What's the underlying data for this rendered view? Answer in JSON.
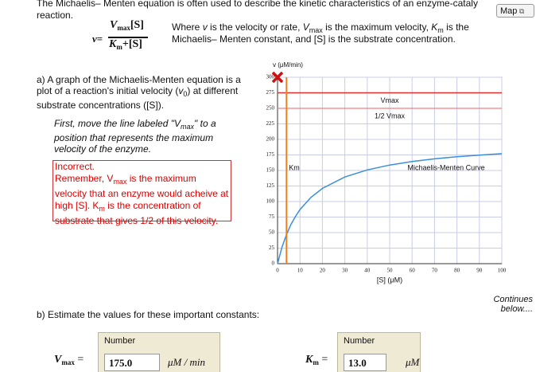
{
  "header": {
    "intro_line1": "The Michaelis– Menten equation is often used to describe the kinetic characteristics of an enzyme-cataly",
    "intro_line2": "reaction.",
    "map_button": "Map"
  },
  "equation": {
    "v": "v",
    "equals": "=",
    "V": "V",
    "max": "max",
    "S": "[S]",
    "K": "K",
    "m": "m",
    "plus_S": "+[S]"
  },
  "where": {
    "line1": [
      "Where ",
      "v",
      " is the velocity or rate, ",
      "V",
      "max",
      " is the maximum velocity, ",
      "K",
      "m",
      " is the"
    ],
    "line2": "Michaelis– Menten constant, and [S] is the substrate concentration."
  },
  "part_a": {
    "text": [
      "a) A graph of the Michaelis-Menten equation is a plot of a reaction's initial velocity (",
      "v",
      "0",
      ") at different substrate concentrations ([S])."
    ],
    "instruction": [
      "First, move the line labeled \"V",
      "max",
      "\" to a position that represents the maximum velocity of the enzyme."
    ],
    "feedback_title": "Incorrect.",
    "feedback": [
      "Remember, V",
      "max",
      " is the maximum velocity that an enzyme would acheive at high [S]. K",
      "m",
      " is the concentration of substrate that gives 1/2 of this velocity."
    ]
  },
  "graph": {
    "y_label": "v (μM/min)",
    "x_label": "[S] (μM)",
    "xlim": [
      0,
      100
    ],
    "xticks": [
      0,
      10,
      20,
      30,
      40,
      50,
      60,
      70,
      80,
      90,
      100
    ],
    "ylim": [
      0,
      300
    ],
    "yticks": [
      0,
      25,
      50,
      75,
      100,
      125,
      150,
      175,
      200,
      225,
      250,
      275,
      300
    ],
    "vmax_line": {
      "label": "Vmax",
      "value": 275
    },
    "half_line": {
      "label": "1/2 Vmax",
      "value": 250
    },
    "km_line": {
      "label": "Km",
      "value": 4
    },
    "curve": {
      "label": "Michaelis-Menten Curve",
      "x": [
        0,
        2,
        4,
        6,
        8,
        10,
        15,
        20,
        30,
        40,
        50,
        60,
        70,
        80,
        90,
        100
      ],
      "values": [
        0,
        26.7,
        47.1,
        63.2,
        76.2,
        87.0,
        107.1,
        121.2,
        139.5,
        150.9,
        158.7,
        164.4,
        168.7,
        172.1,
        174.8,
        177.0
      ]
    }
  },
  "part_b": {
    "prompt": "b) Estimate the values for these important constants:",
    "continues": [
      "Continues",
      "below...."
    ],
    "vmax_input": {
      "symbol": "V",
      "sub": "max",
      "equals": "=",
      "label": "Number",
      "value": "175.0",
      "unit": "μM / min"
    },
    "km_input": {
      "symbol": "K",
      "sub": "m",
      "equals": "=",
      "label": "Number",
      "value": "13.0",
      "unit": "μM"
    }
  }
}
